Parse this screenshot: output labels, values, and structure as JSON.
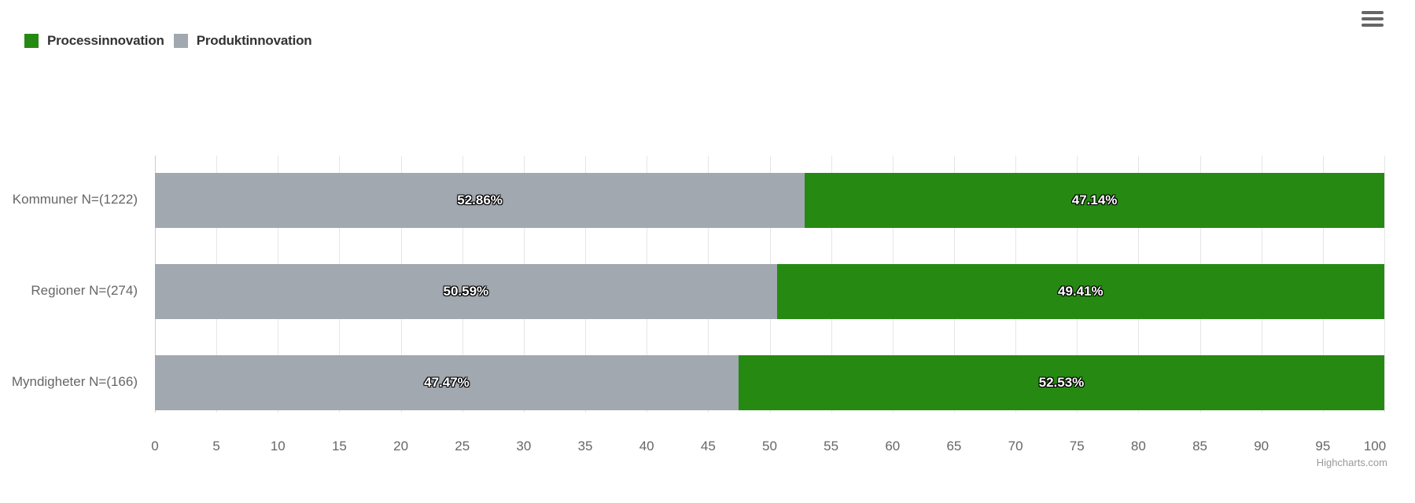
{
  "legend": {
    "items": [
      {
        "label": "Processinnovation",
        "color": "#268a12"
      },
      {
        "label": "Produktinnovation",
        "color": "#a2a8b0"
      }
    ]
  },
  "menu": {
    "icon": "hamburger-menu-icon"
  },
  "credits": "Highcharts.com",
  "chart_data": {
    "type": "bar",
    "stacked": "percent",
    "orientation": "horizontal",
    "categories": [
      "Kommuner N=(1222)",
      "Regioner N=(274)",
      "Myndigheter N=(166)"
    ],
    "series": [
      {
        "name": "Produktinnovation",
        "color": "#a2a8b0",
        "values": [
          52.86,
          50.59,
          47.47
        ],
        "labels": [
          "52.86%",
          "50.59%",
          "47.47%"
        ]
      },
      {
        "name": "Processinnovation",
        "color": "#268a12",
        "values": [
          47.14,
          49.41,
          52.53
        ],
        "labels": [
          "47.14%",
          "49.41%",
          "52.53%"
        ]
      }
    ],
    "xlim": [
      0,
      100
    ],
    "xticks": [
      "0",
      "5",
      "10",
      "15",
      "20",
      "25",
      "30",
      "35",
      "40",
      "45",
      "50",
      "55",
      "60",
      "65",
      "70",
      "75",
      "80",
      "85",
      "90",
      "95",
      "100"
    ],
    "grid": true,
    "legend_position": "top-left",
    "title": "",
    "xlabel": "",
    "ylabel": ""
  }
}
